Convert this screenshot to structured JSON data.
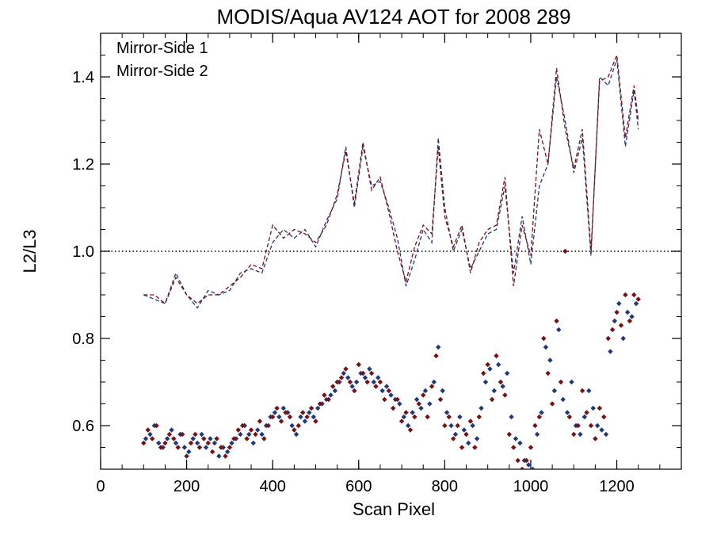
{
  "chart_data": {
    "type": "scatter",
    "title": "MODIS/Aqua AV124 AOT for 2008 289",
    "xlabel": "Scan Pixel",
    "ylabel": "L2/L3",
    "xlim": [
      0,
      1350
    ],
    "ylim": [
      0.5,
      1.5
    ],
    "x_ticks": [
      0,
      200,
      400,
      600,
      800,
      1000,
      1200
    ],
    "y_ticks": [
      0.6,
      0.8,
      1.0,
      1.2,
      1.4
    ],
    "x_minor_step": 50,
    "y_minor_step": 0.05,
    "reference_line": {
      "y": 1.0,
      "style": "dotted"
    },
    "legend": {
      "placement": "top-left"
    },
    "grid": false,
    "series": [
      {
        "name": "Mirror-Side 1",
        "color": "#1f3a7a",
        "line": {
          "x": [
            100,
            125,
            150,
            175,
            200,
            225,
            250,
            275,
            300,
            325,
            350,
            375,
            400,
            425,
            450,
            475,
            500,
            525,
            550,
            570,
            590,
            610,
            630,
            650,
            670,
            690,
            710,
            730,
            750,
            770,
            785,
            800,
            820,
            840,
            860,
            880,
            900,
            920,
            940,
            960,
            980,
            1000,
            1020,
            1040,
            1060,
            1080,
            1100,
            1120,
            1140,
            1160,
            1180,
            1200,
            1220,
            1240,
            1250
          ],
          "y": [
            0.9,
            0.89,
            0.88,
            0.95,
            0.9,
            0.87,
            0.91,
            0.9,
            0.91,
            0.95,
            0.96,
            0.95,
            1.02,
            1.05,
            1.03,
            1.05,
            1.01,
            1.07,
            1.12,
            1.24,
            1.1,
            1.24,
            1.15,
            1.16,
            1.1,
            1.03,
            0.92,
            0.98,
            1.05,
            1.02,
            1.26,
            1.1,
            1.0,
            1.05,
            0.96,
            1.0,
            1.04,
            1.05,
            1.15,
            0.95,
            1.08,
            0.97,
            1.15,
            1.2,
            1.4,
            1.3,
            1.18,
            1.26,
            0.99,
            1.4,
            1.38,
            1.44,
            1.24,
            1.37,
            1.28
          ]
        },
        "points": {
          "x": [
            105,
            115,
            125,
            135,
            145,
            155,
            165,
            175,
            185,
            195,
            205,
            215,
            225,
            235,
            245,
            255,
            265,
            275,
            285,
            295,
            305,
            315,
            325,
            335,
            345,
            355,
            365,
            375,
            385,
            395,
            405,
            415,
            425,
            435,
            445,
            455,
            465,
            475,
            485,
            495,
            505,
            515,
            525,
            535,
            545,
            555,
            565,
            575,
            585,
            595,
            605,
            615,
            625,
            635,
            645,
            655,
            665,
            675,
            685,
            695,
            705,
            715,
            725,
            735,
            745,
            755,
            765,
            775,
            785,
            795,
            805,
            815,
            825,
            835,
            845,
            855,
            865,
            875,
            885,
            895,
            905,
            915,
            925,
            935,
            945,
            955,
            965,
            975,
            985,
            995,
            1005,
            1015,
            1025,
            1035,
            1045,
            1055,
            1065,
            1075,
            1085,
            1095,
            1105,
            1115,
            1125,
            1135,
            1145,
            1155,
            1165,
            1175,
            1185,
            1195,
            1205,
            1215,
            1225,
            1235,
            1245
          ],
          "y": [
            0.57,
            0.58,
            0.6,
            0.56,
            0.55,
            0.57,
            0.59,
            0.56,
            0.58,
            0.55,
            0.54,
            0.57,
            0.56,
            0.58,
            0.55,
            0.57,
            0.56,
            0.53,
            0.55,
            0.54,
            0.56,
            0.57,
            0.58,
            0.6,
            0.58,
            0.56,
            0.59,
            0.58,
            0.6,
            0.62,
            0.63,
            0.62,
            0.64,
            0.63,
            0.6,
            0.58,
            0.62,
            0.61,
            0.63,
            0.62,
            0.64,
            0.65,
            0.66,
            0.67,
            0.68,
            0.7,
            0.72,
            0.71,
            0.69,
            0.7,
            0.72,
            0.71,
            0.73,
            0.7,
            0.71,
            0.68,
            0.69,
            0.67,
            0.66,
            0.65,
            0.62,
            0.6,
            0.63,
            0.66,
            0.64,
            0.68,
            0.65,
            0.7,
            0.78,
            0.68,
            0.63,
            0.6,
            0.58,
            0.62,
            0.59,
            0.56,
            0.6,
            0.57,
            0.64,
            0.7,
            0.73,
            0.68,
            0.74,
            0.69,
            0.72,
            0.62,
            0.57,
            0.56,
            0.52,
            0.51,
            0.5,
            0.58,
            0.63,
            0.78,
            0.75,
            0.68,
            0.82,
            0.66,
            0.63,
            0.7,
            0.6,
            0.58,
            0.62,
            0.68,
            0.64,
            0.6,
            0.59,
            0.58,
            0.77,
            0.84,
            0.88,
            0.8,
            0.86,
            0.85,
            0.88
          ]
        }
      },
      {
        "name": "Mirror-Side 2",
        "color": "#7a0f14",
        "line": {
          "x": [
            100,
            125,
            150,
            175,
            200,
            225,
            250,
            275,
            300,
            325,
            350,
            375,
            400,
            425,
            450,
            475,
            500,
            525,
            550,
            570,
            590,
            610,
            630,
            650,
            670,
            690,
            710,
            730,
            750,
            770,
            785,
            800,
            820,
            840,
            860,
            880,
            900,
            920,
            940,
            960,
            980,
            1000,
            1020,
            1040,
            1060,
            1080,
            1100,
            1120,
            1140,
            1160,
            1180,
            1200,
            1220,
            1240,
            1250
          ],
          "y": [
            0.9,
            0.9,
            0.88,
            0.94,
            0.9,
            0.88,
            0.9,
            0.9,
            0.92,
            0.94,
            0.97,
            0.96,
            1.06,
            1.03,
            1.05,
            1.04,
            1.02,
            1.06,
            1.13,
            1.23,
            1.11,
            1.25,
            1.14,
            1.17,
            1.09,
            1.0,
            0.93,
            1.01,
            1.06,
            1.04,
            1.24,
            1.08,
            1.01,
            1.06,
            0.95,
            1.02,
            1.05,
            1.06,
            1.17,
            0.92,
            1.06,
            0.99,
            1.28,
            1.2,
            1.42,
            1.28,
            1.19,
            1.28,
            1.0,
            1.39,
            1.4,
            1.45,
            1.26,
            1.38,
            1.3
          ]
        },
        "points": {
          "x": [
            100,
            110,
            120,
            130,
            140,
            150,
            160,
            170,
            180,
            190,
            200,
            210,
            220,
            230,
            240,
            250,
            260,
            270,
            280,
            290,
            300,
            310,
            320,
            330,
            340,
            350,
            360,
            370,
            380,
            390,
            400,
            410,
            420,
            430,
            440,
            450,
            460,
            470,
            480,
            490,
            500,
            510,
            520,
            530,
            540,
            550,
            560,
            570,
            580,
            590,
            600,
            610,
            620,
            630,
            640,
            650,
            660,
            670,
            680,
            690,
            700,
            710,
            720,
            730,
            740,
            750,
            760,
            770,
            780,
            790,
            800,
            810,
            820,
            830,
            840,
            850,
            860,
            870,
            880,
            890,
            900,
            910,
            920,
            930,
            940,
            950,
            960,
            970,
            980,
            990,
            1000,
            1010,
            1020,
            1030,
            1040,
            1050,
            1060,
            1070,
            1080,
            1090,
            1100,
            1110,
            1120,
            1130,
            1140,
            1150,
            1160,
            1170,
            1180,
            1190,
            1200,
            1210,
            1220,
            1230,
            1240,
            1250
          ],
          "y": [
            0.56,
            0.59,
            0.57,
            0.6,
            0.55,
            0.56,
            0.58,
            0.57,
            0.55,
            0.58,
            0.53,
            0.56,
            0.58,
            0.55,
            0.57,
            0.56,
            0.54,
            0.57,
            0.55,
            0.53,
            0.55,
            0.57,
            0.59,
            0.6,
            0.57,
            0.59,
            0.58,
            0.61,
            0.57,
            0.6,
            0.62,
            0.64,
            0.61,
            0.63,
            0.62,
            0.59,
            0.6,
            0.63,
            0.62,
            0.64,
            0.61,
            0.65,
            0.67,
            0.66,
            0.69,
            0.7,
            0.71,
            0.73,
            0.7,
            0.68,
            0.74,
            0.72,
            0.7,
            0.72,
            0.69,
            0.7,
            0.66,
            0.68,
            0.64,
            0.66,
            0.61,
            0.63,
            0.59,
            0.62,
            0.65,
            0.67,
            0.62,
            0.69,
            0.76,
            0.66,
            0.6,
            0.62,
            0.57,
            0.6,
            0.55,
            0.58,
            0.61,
            0.55,
            0.62,
            0.72,
            0.74,
            0.66,
            0.76,
            0.7,
            0.67,
            0.58,
            0.55,
            0.52,
            0.5,
            0.52,
            0.55,
            0.6,
            0.62,
            0.8,
            0.72,
            0.65,
            0.84,
            0.7,
            1.0,
            0.62,
            0.58,
            0.6,
            0.68,
            0.63,
            0.6,
            0.57,
            0.64,
            0.62,
            0.8,
            0.82,
            0.86,
            0.83,
            0.9,
            0.84,
            0.9,
            0.89
          ]
        }
      }
    ]
  }
}
